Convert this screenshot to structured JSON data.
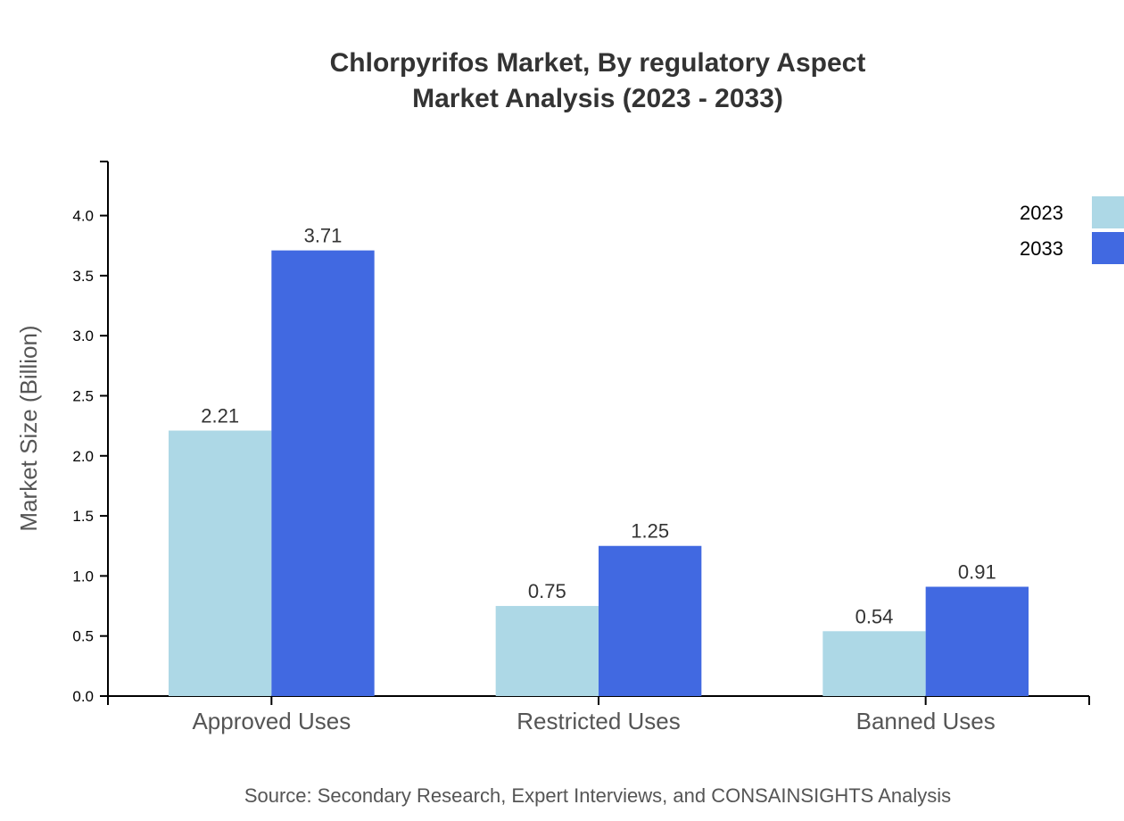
{
  "chart_data": {
    "type": "bar",
    "title": "Chlorpyrifos Market, By regulatory Aspect",
    "subtitle": "Market Analysis (2023 - 2033)",
    "xlabel": "",
    "ylabel": "Market Size (Billion)",
    "categories": [
      "Approved Uses",
      "Restricted Uses",
      "Banned Uses"
    ],
    "series": [
      {
        "name": "2023",
        "color": "#add8e6",
        "values": [
          2.21,
          0.75,
          0.54
        ]
      },
      {
        "name": "2033",
        "color": "#4169e1",
        "values": [
          3.71,
          1.25,
          0.91
        ]
      }
    ],
    "ylim": [
      0,
      4.45
    ],
    "yticks": [
      "0.0",
      "0.5",
      "1.0",
      "1.5",
      "2.0",
      "2.5",
      "3.0",
      "3.5",
      "4.0"
    ],
    "grid": false,
    "legend_position": "top-right",
    "source": "Source: Secondary Research, Expert Interviews, and CONSAINSIGHTS Analysis"
  }
}
